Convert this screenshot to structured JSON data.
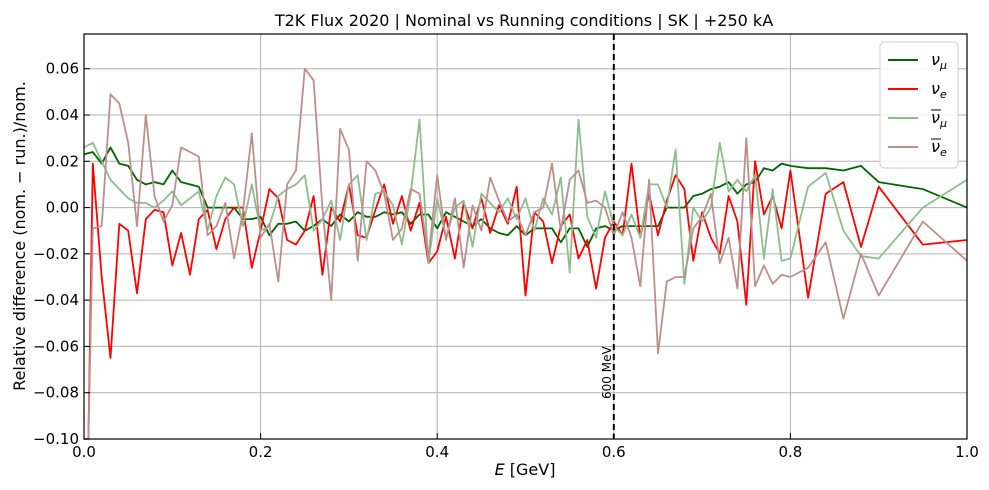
{
  "chart_data": {
    "type": "line",
    "title": "T2K Flux 2020 | Nominal vs Running conditions | SK | +250 kA",
    "xlabel_italic": "E",
    "xlabel_unit": "[GeV]",
    "ylabel": "Relative difference (nom. − run.)/nom.",
    "xlim": [
      0.0,
      1.0
    ],
    "ylim": [
      -0.1,
      0.075
    ],
    "xticks": [
      0.0,
      0.2,
      0.4,
      0.6,
      0.8,
      1.0
    ],
    "xtick_labels": [
      "0.0",
      "0.2",
      "0.4",
      "0.6",
      "0.8",
      "1.0"
    ],
    "yticks": [
      -0.1,
      -0.08,
      -0.06,
      -0.04,
      -0.02,
      0.0,
      0.02,
      0.04,
      0.06
    ],
    "ytick_labels": [
      "−0.10",
      "−0.08",
      "−0.06",
      "−0.04",
      "−0.02",
      "0.00",
      "0.02",
      "0.04",
      "0.06"
    ],
    "grid": true,
    "legend_position": "top-right",
    "annotation": {
      "x": 0.6,
      "style": "dashed vertical line",
      "label": "600 MeV"
    },
    "series": [
      {
        "name": "ν_μ",
        "legend_base": "ν",
        "legend_sub": "μ",
        "legend_bar": false,
        "color": "#006400",
        "x": [
          0.0,
          0.01,
          0.02,
          0.03,
          0.04,
          0.05,
          0.06,
          0.07,
          0.08,
          0.09,
          0.1,
          0.11,
          0.12,
          0.13,
          0.14,
          0.15,
          0.16,
          0.17,
          0.18,
          0.19,
          0.2,
          0.21,
          0.22,
          0.23,
          0.24,
          0.25,
          0.26,
          0.27,
          0.28,
          0.29,
          0.3,
          0.31,
          0.32,
          0.33,
          0.34,
          0.35,
          0.36,
          0.37,
          0.38,
          0.39,
          0.4,
          0.41,
          0.42,
          0.43,
          0.44,
          0.45,
          0.46,
          0.47,
          0.48,
          0.49,
          0.5,
          0.51,
          0.52,
          0.53,
          0.54,
          0.55,
          0.56,
          0.57,
          0.58,
          0.59,
          0.6,
          0.61,
          0.62,
          0.63,
          0.64,
          0.65,
          0.66,
          0.67,
          0.68,
          0.69,
          0.7,
          0.71,
          0.72,
          0.73,
          0.74,
          0.75,
          0.76,
          0.77,
          0.78,
          0.79,
          0.8,
          0.82,
          0.84,
          0.86,
          0.88,
          0.9,
          0.95,
          1.0
        ],
        "values": [
          0.023,
          0.024,
          0.019,
          0.026,
          0.019,
          0.018,
          0.012,
          0.01,
          0.011,
          0.01,
          0.016,
          0.011,
          0.01,
          0.009,
          0.0,
          0.0,
          0.0,
          0.0,
          -0.005,
          -0.005,
          -0.004,
          -0.012,
          -0.007,
          -0.007,
          -0.006,
          -0.01,
          -0.008,
          -0.005,
          -0.008,
          -0.003,
          -0.006,
          -0.002,
          -0.004,
          -0.004,
          -0.002,
          -0.003,
          -0.002,
          -0.007,
          -0.003,
          -0.003,
          -0.009,
          -0.002,
          -0.004,
          -0.006,
          -0.008,
          -0.005,
          -0.009,
          -0.011,
          -0.012,
          -0.008,
          -0.012,
          -0.009,
          -0.009,
          -0.009,
          -0.015,
          -0.009,
          -0.009,
          -0.017,
          -0.009,
          -0.008,
          -0.01,
          -0.008,
          -0.008,
          -0.008,
          -0.008,
          -0.008,
          0.0,
          0.0,
          0.0,
          0.005,
          0.006,
          0.008,
          0.009,
          0.011,
          0.006,
          0.01,
          0.011,
          0.017,
          0.016,
          0.019,
          0.018,
          0.017,
          0.017,
          0.016,
          0.018,
          0.011,
          0.008,
          0.0
        ]
      },
      {
        "name": "ν_e",
        "legend_base": "ν",
        "legend_sub": "e",
        "legend_bar": false,
        "color": "#ff0000",
        "x": [
          0.0,
          0.005,
          0.01,
          0.02,
          0.03,
          0.04,
          0.05,
          0.06,
          0.07,
          0.08,
          0.09,
          0.1,
          0.11,
          0.12,
          0.13,
          0.14,
          0.15,
          0.16,
          0.17,
          0.18,
          0.19,
          0.2,
          0.21,
          0.22,
          0.23,
          0.24,
          0.25,
          0.26,
          0.27,
          0.28,
          0.29,
          0.3,
          0.31,
          0.32,
          0.33,
          0.34,
          0.35,
          0.36,
          0.37,
          0.38,
          0.39,
          0.4,
          0.41,
          0.42,
          0.43,
          0.44,
          0.45,
          0.46,
          0.47,
          0.48,
          0.49,
          0.5,
          0.51,
          0.52,
          0.53,
          0.54,
          0.55,
          0.56,
          0.57,
          0.58,
          0.59,
          0.6,
          0.61,
          0.62,
          0.63,
          0.64,
          0.65,
          0.66,
          0.67,
          0.68,
          0.69,
          0.7,
          0.71,
          0.72,
          0.73,
          0.74,
          0.75,
          0.76,
          0.77,
          0.78,
          0.79,
          0.8,
          0.82,
          0.84,
          0.86,
          0.88,
          0.9,
          0.95,
          1.0
        ],
        "values": [
          -0.1,
          -0.1,
          0.019,
          -0.03,
          -0.065,
          -0.007,
          -0.01,
          -0.037,
          -0.005,
          -0.001,
          -0.002,
          -0.025,
          -0.011,
          -0.029,
          -0.005,
          -0.001,
          -0.018,
          -0.005,
          0.0,
          0.0,
          -0.026,
          -0.01,
          0.008,
          0.004,
          -0.014,
          -0.016,
          -0.01,
          0.005,
          -0.029,
          0.0,
          -0.006,
          0.01,
          -0.012,
          -0.013,
          -0.001,
          0.01,
          -0.007,
          0.005,
          -0.01,
          0.002,
          -0.024,
          -0.019,
          -0.004,
          -0.022,
          0.002,
          -0.009,
          0.004,
          -0.011,
          0.001,
          -0.007,
          0.009,
          -0.038,
          -0.002,
          -0.006,
          -0.024,
          -0.008,
          -0.003,
          -0.022,
          -0.014,
          -0.035,
          -0.013,
          -0.006,
          -0.012,
          0.019,
          -0.013,
          0.006,
          -0.012,
          0.003,
          0.014,
          0.008,
          -0.023,
          -0.002,
          -0.013,
          -0.02,
          0.005,
          -0.006,
          -0.042,
          0.02,
          -0.003,
          0.005,
          -0.009,
          0.016,
          -0.039,
          0.006,
          0.011,
          -0.017,
          0.009,
          -0.016,
          -0.014
        ]
      },
      {
        "name": "ν̄_μ",
        "legend_base": "ν",
        "legend_sub": "μ",
        "legend_bar": true,
        "color": "#8fbc8f",
        "x": [
          0.0,
          0.01,
          0.02,
          0.03,
          0.04,
          0.05,
          0.06,
          0.07,
          0.08,
          0.09,
          0.1,
          0.11,
          0.12,
          0.13,
          0.14,
          0.15,
          0.16,
          0.17,
          0.18,
          0.19,
          0.2,
          0.21,
          0.22,
          0.23,
          0.24,
          0.25,
          0.26,
          0.27,
          0.28,
          0.29,
          0.3,
          0.31,
          0.32,
          0.33,
          0.34,
          0.35,
          0.36,
          0.37,
          0.38,
          0.39,
          0.4,
          0.41,
          0.42,
          0.43,
          0.44,
          0.45,
          0.46,
          0.47,
          0.48,
          0.49,
          0.5,
          0.51,
          0.52,
          0.53,
          0.54,
          0.55,
          0.56,
          0.57,
          0.58,
          0.59,
          0.6,
          0.61,
          0.62,
          0.63,
          0.64,
          0.65,
          0.66,
          0.67,
          0.68,
          0.69,
          0.7,
          0.71,
          0.72,
          0.73,
          0.74,
          0.75,
          0.76,
          0.77,
          0.78,
          0.79,
          0.8,
          0.82,
          0.84,
          0.86,
          0.88,
          0.9,
          0.95,
          1.0
        ],
        "values": [
          0.026,
          0.028,
          0.02,
          0.012,
          0.008,
          0.004,
          0.002,
          0.002,
          0.0,
          0.003,
          0.007,
          0.001,
          0.004,
          0.007,
          -0.01,
          0.005,
          0.013,
          0.01,
          -0.008,
          0.01,
          -0.01,
          -0.008,
          0.005,
          0.008,
          0.01,
          0.014,
          -0.01,
          -0.005,
          0.003,
          -0.014,
          0.01,
          0.014,
          -0.014,
          0.006,
          0.007,
          0.001,
          -0.016,
          0.006,
          0.038,
          -0.024,
          0.004,
          -0.013,
          0.0,
          0.003,
          -0.017,
          0.006,
          0.002,
          -0.002,
          0.004,
          -0.005,
          0.004,
          -0.01,
          0.004,
          -0.003,
          0.013,
          -0.028,
          0.038,
          -0.004,
          -0.013,
          0.007,
          -0.008,
          -0.012,
          -0.003,
          -0.013,
          0.01,
          0.01,
          0.0,
          0.025,
          -0.033,
          0.0,
          -0.006,
          0.0,
          0.028,
          0.007,
          0.012,
          0.007,
          0.014,
          -0.022,
          0.008,
          -0.023,
          -0.022,
          0.009,
          0.015,
          -0.01,
          -0.021,
          -0.022,
          0.0,
          0.012
        ]
      },
      {
        "name": "ν̄_e",
        "legend_base": "ν",
        "legend_sub": "e",
        "legend_bar": true,
        "color": "#bc8f8f",
        "x": [
          0.0,
          0.005,
          0.01,
          0.02,
          0.03,
          0.04,
          0.05,
          0.06,
          0.07,
          0.08,
          0.09,
          0.1,
          0.11,
          0.12,
          0.13,
          0.14,
          0.15,
          0.16,
          0.17,
          0.18,
          0.19,
          0.2,
          0.21,
          0.22,
          0.23,
          0.24,
          0.25,
          0.26,
          0.27,
          0.28,
          0.29,
          0.3,
          0.31,
          0.32,
          0.33,
          0.34,
          0.35,
          0.36,
          0.37,
          0.38,
          0.39,
          0.4,
          0.41,
          0.42,
          0.43,
          0.44,
          0.45,
          0.46,
          0.47,
          0.48,
          0.49,
          0.5,
          0.51,
          0.52,
          0.53,
          0.54,
          0.55,
          0.56,
          0.57,
          0.58,
          0.59,
          0.6,
          0.61,
          0.62,
          0.63,
          0.64,
          0.65,
          0.66,
          0.67,
          0.68,
          0.69,
          0.7,
          0.71,
          0.72,
          0.73,
          0.74,
          0.75,
          0.76,
          0.77,
          0.78,
          0.79,
          0.8,
          0.82,
          0.84,
          0.86,
          0.88,
          0.9,
          0.95,
          1.0
        ],
        "values": [
          -0.1,
          -0.1,
          -0.009,
          -0.008,
          0.049,
          0.045,
          0.028,
          -0.008,
          0.04,
          0.005,
          -0.006,
          0.001,
          0.026,
          0.024,
          0.022,
          -0.012,
          -0.008,
          0.002,
          -0.022,
          -0.002,
          0.032,
          -0.013,
          -0.007,
          -0.032,
          0.01,
          0.016,
          0.06,
          0.055,
          0.0,
          -0.04,
          0.034,
          0.025,
          -0.023,
          0.02,
          0.016,
          0.006,
          -0.014,
          -0.009,
          0.008,
          0.006,
          -0.022,
          0.014,
          -0.014,
          0.004,
          -0.026,
          0.001,
          -0.01,
          0.013,
          0.003,
          -0.006,
          -0.003,
          -0.012,
          -0.002,
          0.0,
          0.019,
          -0.01,
          0.012,
          0.016,
          0.002,
          0.003,
          0.0,
          -0.012,
          -0.002,
          -0.013,
          -0.034,
          0.012,
          -0.063,
          -0.032,
          -0.03,
          -0.03,
          -0.009,
          -0.004,
          0.006,
          -0.024,
          -0.013,
          -0.035,
          0.03,
          -0.034,
          -0.025,
          -0.033,
          -0.029,
          -0.03,
          -0.026,
          -0.015,
          -0.048,
          -0.02,
          -0.038,
          -0.006,
          -0.023
        ]
      }
    ]
  }
}
